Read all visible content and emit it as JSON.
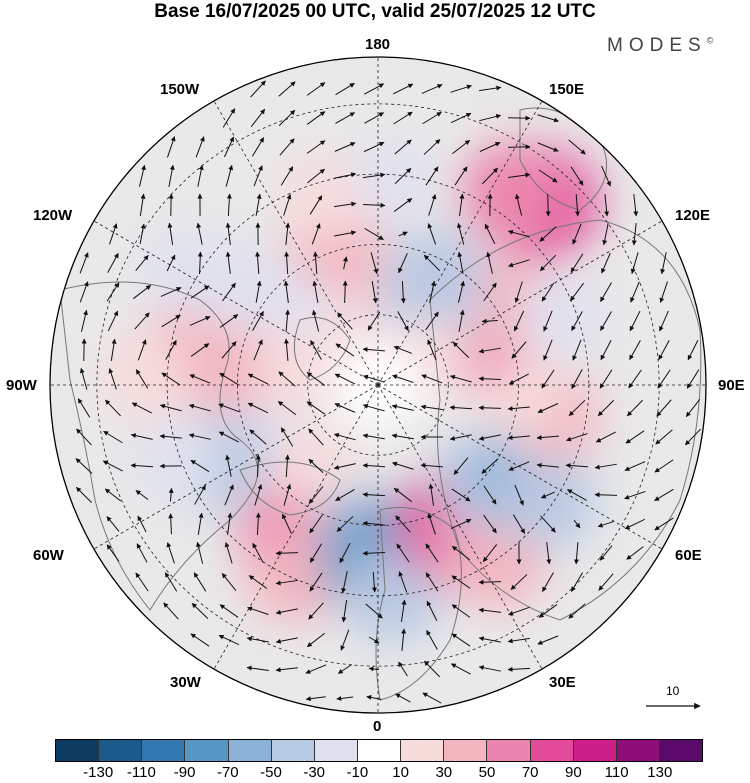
{
  "title": "Base 16/07/2025 00 UTC, valid 25/07/2025 12 UTC",
  "brand": {
    "name": "MODES",
    "mark": "©"
  },
  "longitude_labels": {
    "n180": "180",
    "e150": "150E",
    "e120": "120E",
    "e90": "90E",
    "e60": "60E",
    "e30": "30E",
    "s0": "0",
    "w30": "30W",
    "w60": "60W",
    "w90": "90W",
    "w120": "120W",
    "w150": "150W"
  },
  "vector_reference": {
    "label": "10"
  },
  "colorbar": {
    "colors": [
      "#0d3a5f",
      "#1a5b8c",
      "#3277ad",
      "#5596c4",
      "#8cb2d8",
      "#b8c9e3",
      "#e0e1ef",
      "#ffffff",
      "#f7dcdc",
      "#f3b5c0",
      "#ec85ad",
      "#e34c9b",
      "#cc1f87",
      "#8e0f77",
      "#5b0a6b"
    ],
    "tick_labels": [
      "-130",
      "-110",
      "-90",
      "-70",
      "-50",
      "-30",
      "-10",
      "10",
      "30",
      "50",
      "70",
      "90",
      "110",
      "130"
    ]
  },
  "anomaly_cells": [
    {
      "lat": 72,
      "lon": -158,
      "v": 40
    },
    {
      "lat": 60,
      "lon": -162,
      "v": 45
    },
    {
      "lat": 48,
      "lon": -164,
      "v": 25
    },
    {
      "lat": 78,
      "lon": -168,
      "v": 20
    },
    {
      "lat": 66,
      "lon": -130,
      "v": -20
    },
    {
      "lat": 52,
      "lon": -125,
      "v": -30
    },
    {
      "lat": 42,
      "lon": -120,
      "v": -25
    },
    {
      "lat": 60,
      "lon": -95,
      "v": 30
    },
    {
      "lat": 48,
      "lon": -98,
      "v": 40
    },
    {
      "lat": 40,
      "lon": -92,
      "v": 25
    },
    {
      "lat": 72,
      "lon": -100,
      "v": 10
    },
    {
      "lat": 62,
      "lon": -60,
      "v": -30
    },
    {
      "lat": 52,
      "lon": -64,
      "v": -45
    },
    {
      "lat": 44,
      "lon": -70,
      "v": -20
    },
    {
      "lat": 60,
      "lon": -32,
      "v": 40
    },
    {
      "lat": 52,
      "lon": -30,
      "v": 50
    },
    {
      "lat": 45,
      "lon": -24,
      "v": 30
    },
    {
      "lat": 68,
      "lon": -38,
      "v": 15
    },
    {
      "lat": 58,
      "lon": -4,
      "v": -50
    },
    {
      "lat": 52,
      "lon": 0,
      "v": -75
    },
    {
      "lat": 45,
      "lon": 4,
      "v": -40
    },
    {
      "lat": 56,
      "lon": 28,
      "v": 75
    },
    {
      "lat": 50,
      "lon": 32,
      "v": 60
    },
    {
      "lat": 44,
      "lon": 34,
      "v": 35
    },
    {
      "lat": 60,
      "lon": 48,
      "v": -35
    },
    {
      "lat": 53,
      "lon": 58,
      "v": -60
    },
    {
      "lat": 46,
      "lon": 56,
      "v": -40
    },
    {
      "lat": 52,
      "lon": 80,
      "v": 35
    },
    {
      "lat": 60,
      "lon": 86,
      "v": 25
    },
    {
      "lat": 66,
      "lon": 118,
      "v": 55
    },
    {
      "lat": 60,
      "lon": 124,
      "v": 40
    },
    {
      "lat": 70,
      "lon": 148,
      "v": -45
    },
    {
      "lat": 64,
      "lon": 152,
      "v": -40
    },
    {
      "lat": 48,
      "lon": 110,
      "v": -20
    },
    {
      "lat": 38,
      "lon": 138,
      "v": 80
    },
    {
      "lat": 40,
      "lon": 145,
      "v": 55
    },
    {
      "lat": 46,
      "lon": 176,
      "v": -15
    },
    {
      "lat": 78,
      "lon": 120,
      "v": 10
    }
  ]
}
